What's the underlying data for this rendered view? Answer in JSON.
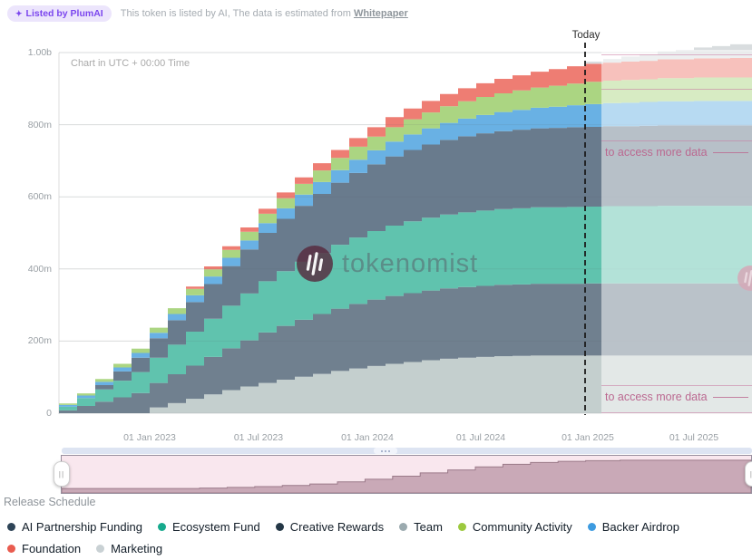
{
  "header": {
    "badge_icon": "✦",
    "badge_label": "Listed by PlumAI",
    "note": "This token is listed by AI, The data is estimated from",
    "note_link": "Whitepaper"
  },
  "chart": {
    "timezone_note": "Chart in UTC + 00:00 Time",
    "today_label": "Today",
    "watermark": "tokenomist",
    "overlay_text": "to access more data",
    "y_ticks": [
      "1.00b",
      "800m",
      "600m",
      "400m",
      "200m",
      "0"
    ],
    "x_ticks": [
      "01 Jan 2023",
      "01 Jul 2023",
      "01 Jan 2024",
      "01 Jul 2024",
      "01 Jan 2025",
      "01 Jul 2025"
    ]
  },
  "chart_data": {
    "type": "area",
    "stacked": true,
    "step": true,
    "title": "Release Schedule",
    "unit": "tokens (millions), cumulative unlocked",
    "x_monthly_from": "2022-08",
    "x_monthly_to": "2025-10",
    "today_month": "2025-01",
    "ylim": [
      0,
      1000
    ],
    "y_tick_values": [
      0,
      200,
      400,
      600,
      800,
      1000
    ],
    "series": [
      {
        "name": "Team",
        "color": "#c4cfce",
        "values": [
          0,
          0,
          0,
          0,
          0,
          16,
          28,
          40,
          52,
          64,
          74,
          84,
          93,
          101,
          109,
          117,
          124,
          131,
          137,
          142,
          147,
          151,
          154,
          156,
          158,
          159,
          160,
          160,
          160,
          160,
          160,
          160,
          160,
          160,
          160,
          160,
          160,
          160,
          160
        ]
      },
      {
        "name": "AI Partnership Funding",
        "color": "#70808f",
        "values": [
          8,
          20,
          32,
          44,
          56,
          68,
          80,
          92,
          104,
          116,
          128,
          140,
          149,
          158,
          166,
          173,
          179,
          184,
          188,
          191,
          193,
          195,
          196,
          197,
          198,
          198,
          199,
          199,
          199,
          200,
          200,
          200,
          200,
          200,
          200,
          200,
          200,
          200,
          200
        ]
      },
      {
        "name": "Ecosystem Fund",
        "color": "#60c3ae",
        "values": [
          10,
          22,
          34,
          46,
          58,
          70,
          82,
          94,
          106,
          118,
          130,
          142,
          152,
          161,
          169,
          177,
          184,
          190,
          195,
          199,
          202,
          205,
          207,
          209,
          210,
          211,
          212,
          212,
          213,
          213,
          214,
          214,
          214,
          215,
          215,
          215,
          215,
          215,
          215
        ]
      },
      {
        "name": "Creative Rewards",
        "color": "#697b8d",
        "values": [
          0,
          0,
          12,
          26,
          40,
          54,
          68,
          82,
          96,
          110,
          122,
          134,
          145,
          155,
          164,
          172,
          179,
          185,
          192,
          198,
          203,
          207,
          211,
          214,
          216,
          218,
          219,
          220,
          221,
          221,
          222,
          222,
          223,
          223,
          223,
          223,
          223,
          223,
          223
        ]
      },
      {
        "name": "Backer Airdrop",
        "color": "#69b1e4",
        "values": [
          5,
          7,
          9,
          11,
          13,
          15,
          17,
          19,
          21,
          23,
          25,
          27,
          29,
          31,
          33,
          35,
          37,
          39,
          41,
          43,
          45,
          47,
          49,
          51,
          53,
          55,
          57,
          59,
          61,
          63,
          64,
          65,
          66,
          67,
          67,
          68,
          68,
          68,
          68
        ]
      },
      {
        "name": "Community Activity",
        "color": "#abd582",
        "values": [
          4,
          6,
          8,
          10,
          12,
          14,
          16,
          18,
          20,
          22,
          24,
          26,
          28,
          30,
          32,
          34,
          36,
          38,
          40,
          42,
          44,
          46,
          48,
          50,
          52,
          54,
          56,
          58,
          60,
          62,
          62,
          63,
          63,
          64,
          64,
          65,
          65,
          65,
          65
        ]
      },
      {
        "name": "Foundation",
        "color": "#ee7d73",
        "values": [
          0,
          0,
          0,
          0,
          0,
          0,
          0,
          6,
          8,
          10,
          12,
          14,
          16,
          18,
          20,
          22,
          24,
          26,
          28,
          30,
          32,
          34,
          36,
          38,
          40,
          42,
          44,
          46,
          48,
          50,
          50,
          51,
          51,
          52,
          52,
          53,
          53,
          54,
          54
        ]
      },
      {
        "name": "Marketing",
        "color": "#d9dddf",
        "values": [
          0,
          0,
          0,
          0,
          0,
          0,
          0,
          0,
          0,
          0,
          0,
          0,
          0,
          0,
          0,
          0,
          0,
          0,
          0,
          0,
          0,
          0,
          0,
          0,
          0,
          0,
          0,
          0,
          0,
          6,
          10,
          14,
          18,
          22,
          26,
          30,
          34,
          38,
          38
        ]
      }
    ]
  },
  "minimap": {
    "description": "full-history total supply silhouette",
    "steps": [
      [
        0,
        0.12
      ],
      [
        0.16,
        0.12
      ],
      [
        0.2,
        0.13
      ],
      [
        0.24,
        0.15
      ],
      [
        0.28,
        0.17
      ],
      [
        0.32,
        0.2
      ],
      [
        0.36,
        0.24
      ],
      [
        0.4,
        0.3
      ],
      [
        0.44,
        0.37
      ],
      [
        0.48,
        0.45
      ],
      [
        0.52,
        0.54
      ],
      [
        0.56,
        0.62
      ],
      [
        0.6,
        0.7
      ],
      [
        0.64,
        0.77
      ],
      [
        0.68,
        0.82
      ],
      [
        0.72,
        0.85
      ],
      [
        0.76,
        0.87
      ],
      [
        0.81,
        0.88
      ],
      [
        1,
        0.88
      ]
    ],
    "fill_color": "#c9a9b7",
    "edge_color": "#9b7a89",
    "track_color": "#f9e7ee",
    "handle_glyph": "||"
  },
  "footer_label": "Release Schedule",
  "legend": {
    "items": [
      {
        "label": "AI Partnership Funding",
        "color": "#2e4457"
      },
      {
        "label": "Ecosystem Fund",
        "color": "#17aa8d"
      },
      {
        "label": "Creative Rewards",
        "color": "#243746"
      },
      {
        "label": "Team",
        "color": "#9baaaf"
      },
      {
        "label": "Community Activity",
        "color": "#9cc93e"
      },
      {
        "label": "Backer Airdrop",
        "color": "#3d9be0"
      },
      {
        "label": "Foundation",
        "color": "#e95c4f"
      },
      {
        "label": "Marketing",
        "color": "#c9d1d4"
      }
    ]
  },
  "colors": {
    "accent_purple": "#7b46ee",
    "today_line": "#1b1b1b",
    "overlay_pink": "#bb6890",
    "watermark_logo": "#56283c",
    "edge_logo": "#a84a6a",
    "gridline": "#ececec"
  }
}
